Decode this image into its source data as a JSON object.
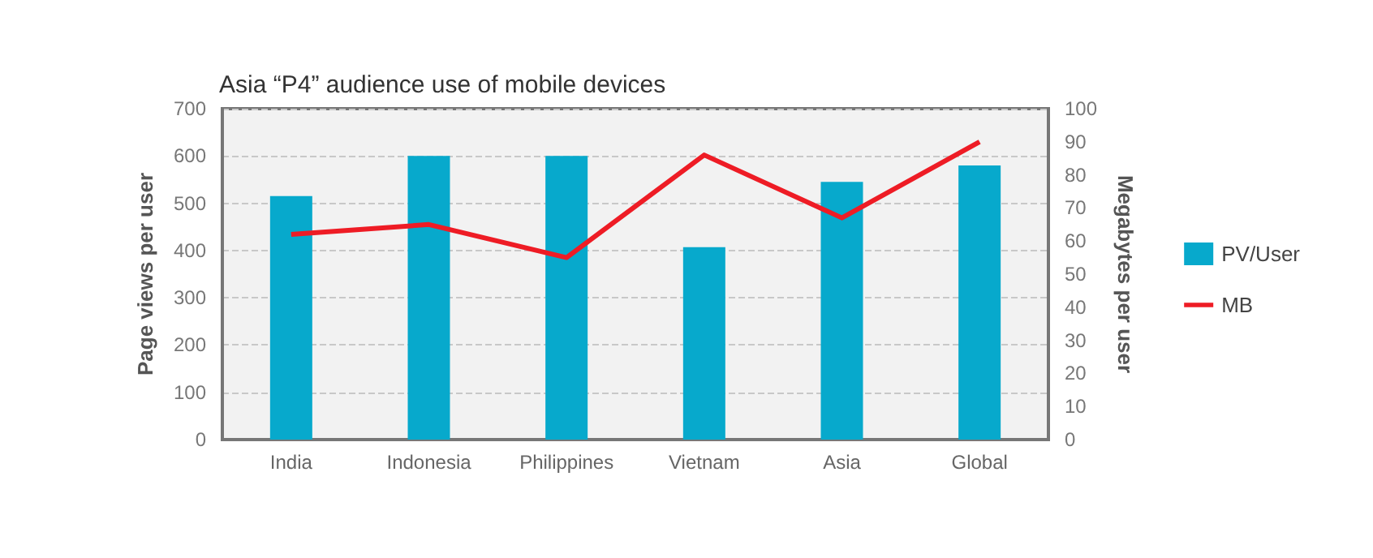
{
  "chart_data": {
    "type": "bar",
    "title": "Asia “P4” audience use of mobile devices",
    "ylabel": "Page views per user",
    "y2label": "Megabytes per user",
    "categories": [
      "India",
      "Indonesia",
      "Philippines",
      "Vietnam",
      "Asia",
      "Global"
    ],
    "series": [
      {
        "name": "PV/User",
        "color": "#07a9cc",
        "values": [
          515,
          600,
          600,
          407,
          545,
          580
        ]
      },
      {
        "name": "MB",
        "type": "line",
        "axis": "y2",
        "color": "#ee1c25",
        "values": [
          62,
          65,
          55,
          86,
          67,
          90
        ]
      }
    ],
    "ylim": [
      0,
      700
    ],
    "yticks": [
      0,
      100,
      200,
      300,
      400,
      500,
      600,
      700
    ],
    "y2lim": [
      0,
      100
    ],
    "y2ticks": [
      0,
      10,
      20,
      30,
      40,
      50,
      60,
      70,
      80,
      90,
      100
    ],
    "grid": "y",
    "legend": "right",
    "marker": "none",
    "line_style": "solid"
  }
}
